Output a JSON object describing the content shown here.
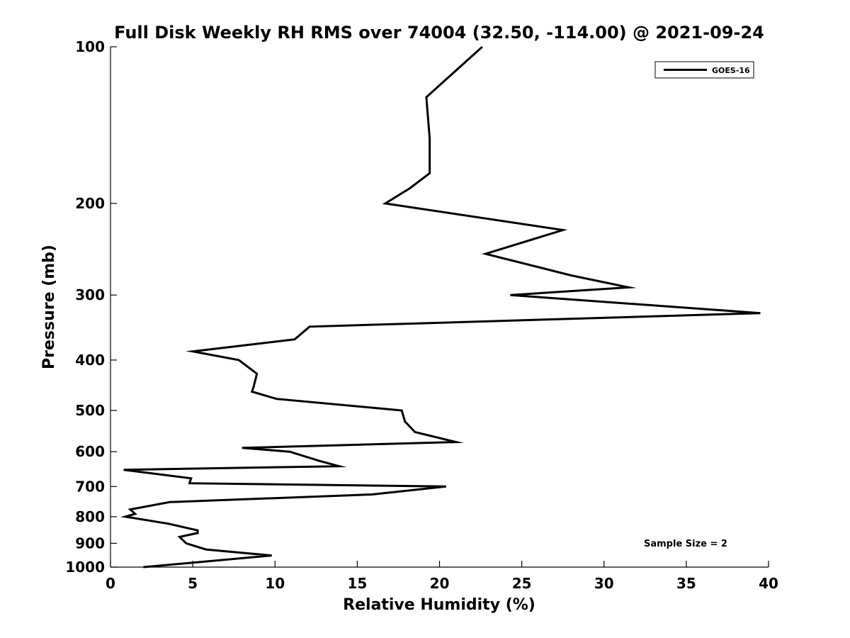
{
  "chart_data": {
    "type": "line",
    "title": "Full Disk Weekly RH RMS over 74004 (32.50, -114.00) @ 2021-09-24",
    "xlabel": "Relative Humidity (%)",
    "ylabel": "Pressure (mb)",
    "xlim": [
      0,
      40
    ],
    "ylim": [
      1000,
      100
    ],
    "y_scale": "log",
    "y_inverted": true,
    "grid": false,
    "legend_position": "top-right",
    "x_ticks": [
      0,
      5,
      10,
      15,
      20,
      25,
      30,
      35,
      40
    ],
    "y_ticks": [
      100,
      200,
      300,
      400,
      500,
      600,
      700,
      800,
      900,
      1000
    ],
    "annotation": "Sample Size = 2",
    "series": [
      {
        "name": "GOES-16",
        "color": "#000000",
        "points": [
          [
            22.6,
            100
          ],
          [
            19.2,
            125
          ],
          [
            19.4,
            150
          ],
          [
            19.4,
            175
          ],
          [
            18.2,
            187
          ],
          [
            16.7,
            200
          ],
          [
            27.5,
            225
          ],
          [
            22.8,
            250
          ],
          [
            28.0,
            275
          ],
          [
            31.5,
            290
          ],
          [
            24.3,
            300
          ],
          [
            39.5,
            325
          ],
          [
            12.1,
            345
          ],
          [
            11.2,
            365
          ],
          [
            5.0,
            385
          ],
          [
            7.8,
            400
          ],
          [
            8.9,
            425
          ],
          [
            8.7,
            450
          ],
          [
            8.6,
            460
          ],
          [
            10.1,
            475
          ],
          [
            17.7,
            500
          ],
          [
            17.9,
            525
          ],
          [
            18.5,
            550
          ],
          [
            21.0,
            575
          ],
          [
            8.0,
            590
          ],
          [
            10.9,
            600
          ],
          [
            12.7,
            625
          ],
          [
            13.9,
            640
          ],
          [
            0.8,
            650
          ],
          [
            4.9,
            675
          ],
          [
            4.8,
            690
          ],
          [
            20.4,
            700
          ],
          [
            15.9,
            725
          ],
          [
            3.6,
            750
          ],
          [
            1.2,
            775
          ],
          [
            1.5,
            790
          ],
          [
            0.9,
            800
          ],
          [
            3.5,
            825
          ],
          [
            5.3,
            850
          ],
          [
            5.3,
            860
          ],
          [
            4.2,
            875
          ],
          [
            4.6,
            900
          ],
          [
            5.8,
            925
          ],
          [
            9.8,
            950
          ],
          [
            2.0,
            1000
          ]
        ]
      }
    ]
  }
}
